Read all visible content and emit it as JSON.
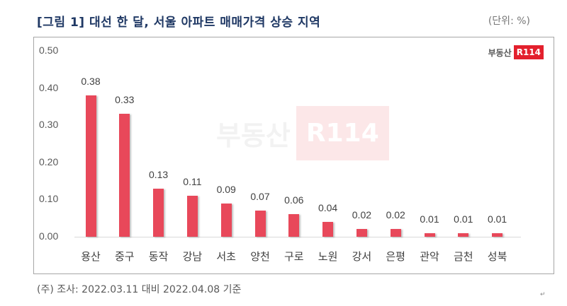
{
  "header": {
    "title": "[그림 1]  대선 한 달, 서울 아파트 매매가격 상승 지역",
    "unit": "(단위: %)"
  },
  "logo": {
    "text": "부동산",
    "badge": "R114"
  },
  "watermark": {
    "text": "부동산",
    "badge": "R114"
  },
  "footer": {
    "note": "(주) 조사: 2022.03.11 대비 2022.04.08 기준",
    "return_mark": "↵"
  },
  "colors": {
    "bar": "#e8485a",
    "title": "#1f3864",
    "logo_red": "#e3202d"
  },
  "chart_data": {
    "type": "bar",
    "title": "[그림 1] 대선 한 달, 서울 아파트 매매가격 상승 지역",
    "unit": "(단위: %)",
    "xlabel": "",
    "ylabel": "",
    "categories": [
      "용산",
      "중구",
      "동작",
      "강남",
      "서초",
      "양천",
      "구로",
      "노원",
      "강서",
      "은평",
      "관악",
      "금천",
      "성북"
    ],
    "values": [
      0.38,
      0.33,
      0.13,
      0.11,
      0.09,
      0.07,
      0.06,
      0.04,
      0.02,
      0.02,
      0.01,
      0.01,
      0.01
    ],
    "value_labels": [
      "0.38",
      "0.33",
      "0.13",
      "0.11",
      "0.09",
      "0.07",
      "0.06",
      "0.04",
      "0.02",
      "0.02",
      "0.01",
      "0.01",
      "0.01"
    ],
    "yticks": [
      "0.00",
      "0.10",
      "0.20",
      "0.30",
      "0.40",
      "0.50"
    ],
    "ylim": [
      0,
      0.5
    ],
    "grid": false,
    "legend": null,
    "source_note": "(주) 조사: 2022.03.11 대비 2022.04.08 기준"
  }
}
